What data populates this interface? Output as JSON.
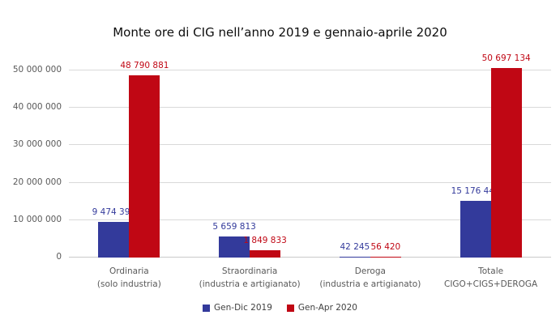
{
  "chart_data": {
    "type": "bar",
    "title": "Monte ore di CIG nell’anno 2019 e gennaio-aprile 2020",
    "categories": [
      [
        "Ordinaria",
        "(solo industria)"
      ],
      [
        "Straordinaria",
        "(industria e artigianato)"
      ],
      [
        "Deroga",
        "(industria e artigianato)"
      ],
      [
        "Totale",
        "CIGO+CIGS+DEROGA"
      ]
    ],
    "series": [
      {
        "name": "Gen-Dic 2019",
        "color": "#333A9B",
        "values": [
          9474391,
          5659813,
          42245,
          15176449
        ],
        "labels": [
          "9 474 391",
          "5 659 813",
          "42 245",
          "15 176 449"
        ]
      },
      {
        "name": "Gen-Apr 2020",
        "color": "#C00714",
        "values": [
          48790881,
          1849833,
          56420,
          50697134
        ],
        "labels": [
          "48 790 881",
          "1 849 833",
          "56 420",
          "50 697 134"
        ]
      }
    ],
    "y_ticks": [
      {
        "label": "0",
        "value": 0
      },
      {
        "label": "10 000 000",
        "value": 10000000
      },
      {
        "label": "20 000 000",
        "value": 20000000
      },
      {
        "label": "30 000 000",
        "value": 30000000
      },
      {
        "label": "40 000 000",
        "value": 40000000
      },
      {
        "label": "50 000 000",
        "value": 50000000
      }
    ],
    "ylim": [
      0,
      50000000
    ],
    "grid": true,
    "legend_position": "bottom"
  },
  "colors": {
    "gridline": "#D9D9D9",
    "axis_text": "#595959",
    "legend_text": "#404040",
    "title_text": "#0D0D0D"
  }
}
